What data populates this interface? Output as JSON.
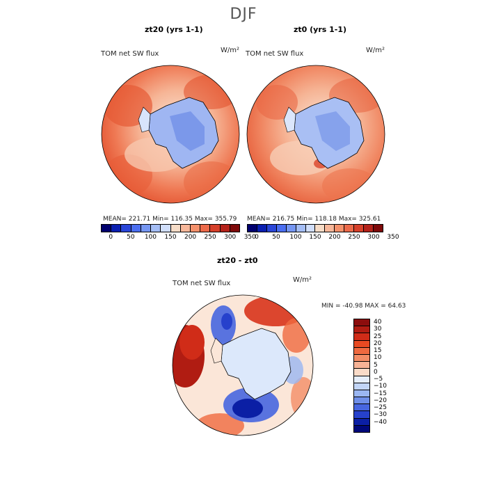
{
  "title": "DJF",
  "panels": [
    {
      "title": "zt20 (yrs 1-1)",
      "variable": "TOM net SW flux",
      "units": "W/m²",
      "stats": "MEAN= 221.71   Min= 116.35   Max= 355.79"
    },
    {
      "title": "zt0 (yrs 1-1)",
      "variable": "TOM net SW flux",
      "units": "W/m²",
      "stats": "MEAN= 216.75   Min= 118.18   Max= 325.61"
    },
    {
      "title": "zt20 - zt0",
      "variable": "TOM net SW flux",
      "units": "W/m²",
      "stats": "MIN = -40.98  MAX =  64.63"
    }
  ],
  "colorbar_top": {
    "labels": [
      "0",
      "50",
      "100",
      "150",
      "200",
      "250",
      "300",
      "350"
    ],
    "colors": [
      "#00006e",
      "#0a1fb0",
      "#2a46d8",
      "#4b6ef0",
      "#7596f2",
      "#a4bdf5",
      "#d0defa",
      "#f6dcc7",
      "#f7b79a",
      "#f4916c",
      "#ec6a4a",
      "#d6402a",
      "#b4221a",
      "#7e0a0a"
    ]
  },
  "colorbar_diff": {
    "labels": [
      "40",
      "30",
      "25",
      "20",
      "15",
      "10",
      "5",
      "0",
      "−5",
      "−10",
      "−15",
      "−20",
      "−25",
      "−30",
      "−40"
    ],
    "colors": [
      "#8c0d0d",
      "#b01c12",
      "#d02c18",
      "#e84a22",
      "#f06a40",
      "#f48d66",
      "#f7b396",
      "#fadbc8",
      "#e6eefb",
      "#c2d5f7",
      "#9ab6f2",
      "#6f8fe9",
      "#4766e0",
      "#2641cc",
      "#0b1fa5",
      "#00087a"
    ]
  }
}
